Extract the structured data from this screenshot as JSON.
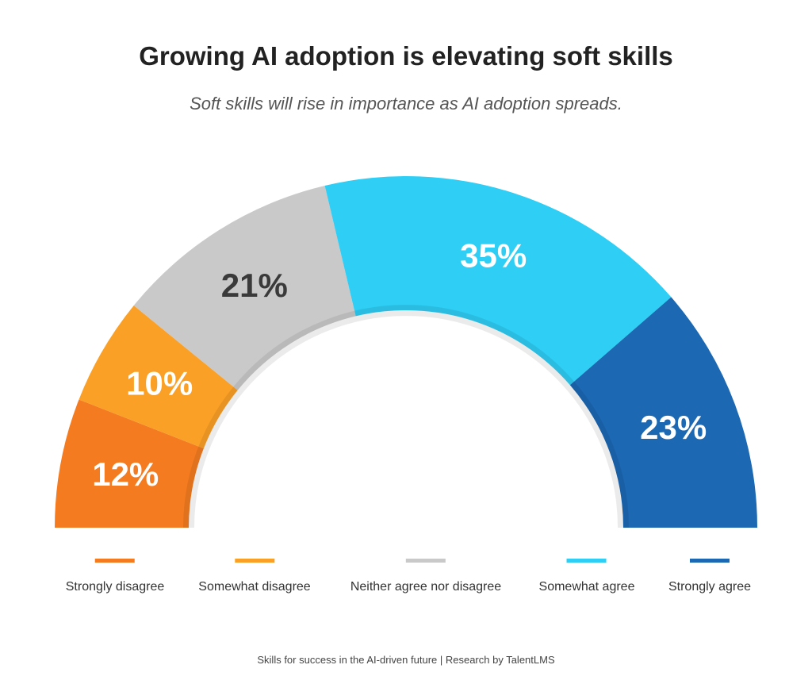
{
  "title": "Growing AI adoption is elevating soft skills",
  "subtitle": "Soft skills will rise in importance as AI adoption spreads.",
  "footer": "Skills for success in the AI-driven future  |  Research by TalentLMS",
  "chart_data": {
    "type": "pie",
    "shape": "semicircle-donut",
    "categories": [
      "Strongly disagree",
      "Somewhat disagree",
      "Neither agree nor disagree",
      "Somewhat agree",
      "Strongly agree"
    ],
    "values": [
      12,
      10,
      21,
      35,
      23
    ],
    "labels": [
      "12%",
      "10%",
      "21%",
      "35%",
      "23%"
    ],
    "colors": [
      "#F47B20",
      "#FBA026",
      "#C9C9C9",
      "#2ECEF5",
      "#1C68B3"
    ],
    "label_colors": [
      "#ffffff",
      "#ffffff",
      "#3a3a3a",
      "#ffffff",
      "#ffffff"
    ],
    "legend": "bottom"
  }
}
